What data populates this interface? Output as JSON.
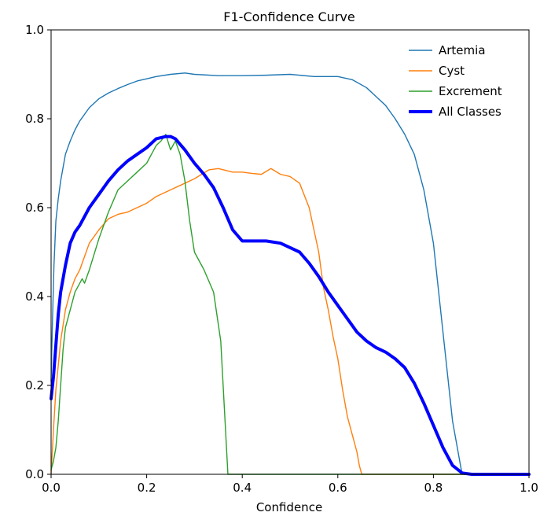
{
  "chart_data": {
    "type": "line",
    "title": "F1-Confidence Curve",
    "xlabel": "Confidence",
    "ylabel": "",
    "xlim": [
      0.0,
      1.0
    ],
    "ylim": [
      0.0,
      1.0
    ],
    "xticks": [
      "0.0",
      "0.2",
      "0.4",
      "0.6",
      "0.8",
      "1.0"
    ],
    "yticks": [
      "0.0",
      "0.2",
      "0.4",
      "0.6",
      "0.8",
      "1.0"
    ],
    "grid": false,
    "legend_position": "top-right",
    "series": [
      {
        "name": "Artemia",
        "color": "#1f77b4",
        "x": [
          0.0,
          0.003,
          0.006,
          0.01,
          0.015,
          0.02,
          0.025,
          0.03,
          0.04,
          0.05,
          0.06,
          0.07,
          0.08,
          0.09,
          0.1,
          0.12,
          0.14,
          0.16,
          0.18,
          0.2,
          0.22,
          0.25,
          0.28,
          0.3,
          0.35,
          0.4,
          0.45,
          0.5,
          0.55,
          0.6,
          0.63,
          0.66,
          0.68,
          0.7,
          0.72,
          0.74,
          0.76,
          0.78,
          0.8,
          0.82,
          0.84,
          0.86,
          1.0
        ],
        "y": [
          0.21,
          0.35,
          0.47,
          0.57,
          0.62,
          0.66,
          0.69,
          0.72,
          0.75,
          0.775,
          0.795,
          0.81,
          0.825,
          0.835,
          0.845,
          0.858,
          0.868,
          0.877,
          0.885,
          0.89,
          0.895,
          0.9,
          0.903,
          0.9,
          0.897,
          0.897,
          0.898,
          0.9,
          0.895,
          0.895,
          0.888,
          0.87,
          0.85,
          0.83,
          0.8,
          0.765,
          0.72,
          0.64,
          0.52,
          0.32,
          0.12,
          0.0,
          0.0
        ]
      },
      {
        "name": "Cyst",
        "color": "#ff7f0e",
        "x": [
          0.0,
          0.005,
          0.01,
          0.02,
          0.03,
          0.04,
          0.05,
          0.06,
          0.07,
          0.08,
          0.1,
          0.12,
          0.14,
          0.16,
          0.18,
          0.2,
          0.22,
          0.25,
          0.28,
          0.3,
          0.33,
          0.35,
          0.38,
          0.4,
          0.42,
          0.44,
          0.46,
          0.48,
          0.5,
          0.52,
          0.54,
          0.56,
          0.57,
          0.58,
          0.585,
          0.59,
          0.6,
          0.61,
          0.62,
          0.63,
          0.64,
          0.645,
          0.65,
          1.0
        ],
        "y": [
          0.0,
          0.1,
          0.19,
          0.3,
          0.37,
          0.41,
          0.44,
          0.46,
          0.49,
          0.52,
          0.55,
          0.575,
          0.585,
          0.59,
          0.6,
          0.61,
          0.625,
          0.64,
          0.655,
          0.665,
          0.685,
          0.688,
          0.68,
          0.68,
          0.677,
          0.675,
          0.688,
          0.675,
          0.67,
          0.655,
          0.6,
          0.5,
          0.42,
          0.37,
          0.34,
          0.31,
          0.26,
          0.19,
          0.13,
          0.09,
          0.05,
          0.02,
          0.0,
          0.0
        ]
      },
      {
        "name": "Excrement",
        "color": "#2ca02c",
        "x": [
          0.0,
          0.005,
          0.01,
          0.015,
          0.02,
          0.025,
          0.03,
          0.04,
          0.05,
          0.06,
          0.065,
          0.07,
          0.08,
          0.1,
          0.12,
          0.14,
          0.16,
          0.18,
          0.2,
          0.21,
          0.22,
          0.23,
          0.24,
          0.25,
          0.26,
          0.27,
          0.28,
          0.29,
          0.3,
          0.32,
          0.34,
          0.355,
          0.36,
          0.365,
          0.37,
          1.0
        ],
        "y": [
          0.01,
          0.03,
          0.06,
          0.12,
          0.2,
          0.28,
          0.33,
          0.37,
          0.41,
          0.43,
          0.44,
          0.43,
          0.46,
          0.53,
          0.59,
          0.64,
          0.66,
          0.68,
          0.7,
          0.72,
          0.74,
          0.75,
          0.765,
          0.73,
          0.75,
          0.72,
          0.66,
          0.57,
          0.5,
          0.46,
          0.41,
          0.3,
          0.2,
          0.1,
          0.0,
          0.0
        ]
      },
      {
        "name": "All Classes",
        "color": "#0000ff",
        "x": [
          0.0,
          0.005,
          0.01,
          0.015,
          0.02,
          0.03,
          0.04,
          0.05,
          0.06,
          0.08,
          0.1,
          0.12,
          0.14,
          0.16,
          0.18,
          0.2,
          0.22,
          0.24,
          0.25,
          0.26,
          0.28,
          0.3,
          0.32,
          0.34,
          0.36,
          0.38,
          0.4,
          0.42,
          0.45,
          0.48,
          0.5,
          0.52,
          0.54,
          0.56,
          0.58,
          0.6,
          0.62,
          0.64,
          0.66,
          0.68,
          0.7,
          0.72,
          0.74,
          0.76,
          0.78,
          0.8,
          0.82,
          0.84,
          0.86,
          0.88,
          1.0
        ],
        "y": [
          0.17,
          0.22,
          0.29,
          0.36,
          0.41,
          0.47,
          0.52,
          0.545,
          0.56,
          0.6,
          0.63,
          0.66,
          0.685,
          0.705,
          0.72,
          0.735,
          0.755,
          0.76,
          0.76,
          0.755,
          0.73,
          0.7,
          0.675,
          0.645,
          0.6,
          0.55,
          0.525,
          0.525,
          0.525,
          0.52,
          0.51,
          0.5,
          0.475,
          0.445,
          0.41,
          0.38,
          0.35,
          0.32,
          0.3,
          0.285,
          0.275,
          0.26,
          0.24,
          0.205,
          0.16,
          0.11,
          0.06,
          0.02,
          0.003,
          0.0,
          0.0
        ]
      }
    ]
  }
}
